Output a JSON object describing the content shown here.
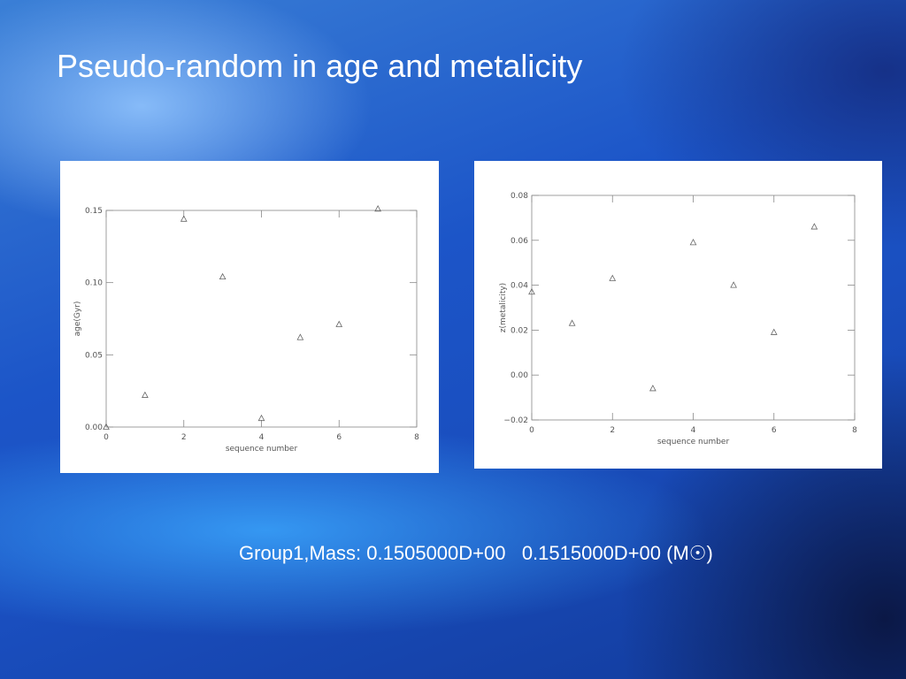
{
  "title": "Pseudo-random in age and metalicity",
  "caption": "Group1,Mass: 0.1505000D+00   0.1515000D+00 (M☉)",
  "chart_data": [
    {
      "type": "scatter",
      "x_label": "sequence number",
      "y_label": "age(Gyr)",
      "color": "#666666",
      "x": [
        0,
        1,
        2,
        3,
        4,
        5,
        6,
        7
      ],
      "values": [
        0.0,
        0.022,
        0.144,
        0.104,
        0.006,
        0.062,
        0.071,
        0.151
      ],
      "xlim": [
        0,
        8
      ],
      "xticks": [
        0,
        2,
        4,
        6,
        8
      ],
      "ylim": [
        0,
        0.15
      ],
      "yticks": [
        {
          "value": 0,
          "label": "0.00"
        },
        {
          "value": 0.05,
          "label": "0.05"
        },
        {
          "value": 0.1,
          "label": "0.10"
        },
        {
          "value": 0.15,
          "label": "0.15"
        }
      ]
    },
    {
      "type": "scatter",
      "x_label": "sequence number",
      "y_label": "z(metalicity)",
      "color": "#666666",
      "x": [
        0,
        1,
        2,
        3,
        4,
        5,
        6,
        7
      ],
      "values": [
        0.037,
        0.023,
        0.043,
        -0.006,
        0.059,
        0.04,
        0.019,
        0.066
      ],
      "xlim": [
        0,
        8
      ],
      "xticks": [
        0,
        2,
        4,
        6,
        8
      ],
      "ylim": [
        -0.02,
        0.08
      ],
      "yticks": [
        {
          "value": -0.02,
          "label": "−0.02"
        },
        {
          "value": 0,
          "label": "0.00"
        },
        {
          "value": 0.02,
          "label": "0.02"
        },
        {
          "value": 0.04,
          "label": "0.04"
        },
        {
          "value": 0.06,
          "label": "0.06"
        },
        {
          "value": 0.08,
          "label": "0.08"
        }
      ]
    }
  ]
}
